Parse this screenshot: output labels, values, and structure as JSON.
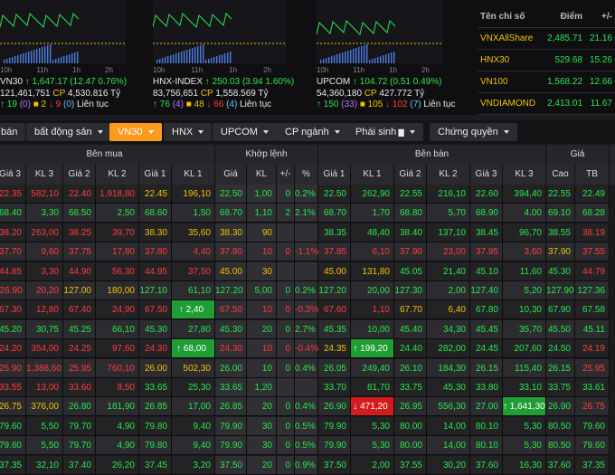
{
  "indices": [
    {
      "time": [
        "10h",
        "11h",
        "1h",
        "2h"
      ],
      "name": "VN30",
      "arrow": "up",
      "value": "1,647.17",
      "change": "(12.47 0.76%)",
      "volume": "121,461,751",
      "cp_label": "CP",
      "value_traded": "4,530.816",
      "unit": "Tỷ",
      "up": "19",
      "ceil": "(0)",
      "ref": "2",
      "down": "9",
      "floor": "(0)",
      "session": "Liên tục"
    },
    {
      "time": [
        "10h",
        "11h",
        "1h",
        "2h"
      ],
      "name": "HNX-INDEX",
      "arrow": "up",
      "value": "250.03",
      "change": "(3.94 1.60%)",
      "volume": "83,756,651",
      "cp_label": "CP",
      "value_traded": "1,558.569",
      "unit": "Tỷ",
      "up": "76",
      "ceil": "(4)",
      "ref": "48",
      "down": "66",
      "floor": "(4)",
      "session": "Liên tục"
    },
    {
      "time": [
        "10h",
        "11h",
        "1h",
        "2h"
      ],
      "name": "UPCOM",
      "arrow": "up",
      "value": "104.72",
      "change": "(0.51 0.49%)",
      "volume": "54,360,180",
      "cp_label": "CP",
      "value_traded": "427.772",
      "unit": "Tỷ",
      "up": "150",
      "ceil": "(33)",
      "ref": "105",
      "down": "102",
      "floor": "(7)",
      "session": "Liên tục"
    }
  ],
  "summary": {
    "headers": [
      "Tên chỉ số",
      "Điểm",
      "+/-"
    ],
    "rows": [
      {
        "name": "VNXAllShare",
        "point": "2,485.71",
        "chg": "21.16"
      },
      {
        "name": "HNX30",
        "point": "529.68",
        "chg": "15.26"
      },
      {
        "name": "VN100",
        "point": "1,568.22",
        "chg": "12.66"
      },
      {
        "name": "VNDIAMOND",
        "point": "2,413.01",
        "chg": "11.67"
      }
    ]
  },
  "tabs": [
    {
      "label": "bán",
      "caret": false
    },
    {
      "label": "bất động sản",
      "caret": true
    },
    {
      "label": "VN30",
      "caret": true,
      "active": true
    },
    {
      "label": "HNX",
      "caret": true
    },
    {
      "label": "UPCOM",
      "caret": true
    },
    {
      "label": "CP ngành",
      "caret": true
    },
    {
      "label": "Phái sinh",
      "caret": true
    },
    {
      "label": "Chứng quyền",
      "caret": true
    }
  ],
  "groups": {
    "buy": "Bên mua",
    "match": "Khớp lệnh",
    "sell": "Bên bán",
    "price": "Giá"
  },
  "columns": [
    "Giá 3",
    "KL 3",
    "Giá 2",
    "KL 2",
    "Giá 1",
    "KL 1",
    "Giá",
    "KL",
    "+/-",
    "%",
    "Giá 1",
    "KL 1",
    "Giá 2",
    "KL 2",
    "Giá 3",
    "KL 3",
    "Cao",
    "TB"
  ],
  "rows": [
    [
      "22.35",
      "582,10",
      "22.40",
      "1,918,80",
      "22.45",
      "196,10",
      "22.50",
      "1,00",
      "0",
      "0.2%",
      "22.50",
      "262,90",
      "22.55",
      "216,10",
      "22.60",
      "394,40",
      "22.55",
      "22.49"
    ],
    [
      "68.40",
      "3,30",
      "68.50",
      "2,50",
      "68.60",
      "1,50",
      "68.70",
      "1,10",
      "2",
      "2.1%",
      "68.70",
      "1,70",
      "68.80",
      "5,70",
      "68.90",
      "4,00",
      "69.10",
      "68.28"
    ],
    [
      "38.20",
      "263,00",
      "38.25",
      "39,70",
      "38.30",
      "35,60",
      "38.30",
      "90",
      "",
      "",
      "38.35",
      "48,40",
      "38.40",
      "137,10",
      "38.45",
      "96,70",
      "38.55",
      "38.19"
    ],
    [
      "37.70",
      "9,60",
      "37.75",
      "17,80",
      "37.80",
      "4,40",
      "37.80",
      "10",
      "0",
      "-1.1%",
      "37.85",
      "6,10",
      "37.90",
      "23,00",
      "37.95",
      "3,60",
      "37.90",
      "37.55"
    ],
    [
      "44.85",
      "3,30",
      "44.90",
      "56,30",
      "44.95",
      "37,50",
      "45.00",
      "30",
      "",
      "",
      "45.00",
      "131,80",
      "45.05",
      "21,40",
      "45.10",
      "11,60",
      "45.30",
      "44.79"
    ],
    [
      "126.90",
      "20,20",
      "127.00",
      "180,00",
      "127.10",
      "61,10",
      "127.20",
      "5,00",
      "0",
      "0.2%",
      "127.20",
      "20,00",
      "127.30",
      "2,00",
      "127.40",
      "5,20",
      "127.90",
      "127.36"
    ],
    [
      "67.30",
      "12,80",
      "67.40",
      "24,90",
      "67.50",
      "2,40",
      "67.50",
      "10",
      "0",
      "-0.3%",
      "67.60",
      "1,10",
      "67.70",
      "6,40",
      "67.80",
      "10,30",
      "67.90",
      "67.58"
    ],
    [
      "45.20",
      "30,75",
      "45.25",
      "66,10",
      "45.30",
      "27,80",
      "45.30",
      "20",
      "0",
      "2.7%",
      "45.35",
      "10,00",
      "45.40",
      "34,30",
      "45.45",
      "35,70",
      "45.50",
      "45.11"
    ],
    [
      "24.20",
      "354,00",
      "24.25",
      "97,60",
      "24.30",
      "68,00",
      "24.30",
      "10",
      "0",
      "-0.4%",
      "24.35",
      "199,20",
      "24.40",
      "282,00",
      "24.45",
      "207,60",
      "24.50",
      "24.19"
    ],
    [
      "25.90",
      "1,388,60",
      "25.95",
      "760,10",
      "26.00",
      "502,30",
      "26.00",
      "10",
      "0",
      "0.4%",
      "26.05",
      "249,40",
      "26.10",
      "184,30",
      "26.15",
      "115,40",
      "26.15",
      "25.95"
    ],
    [
      "33.55",
      "13,00",
      "33.60",
      "8,50",
      "33.65",
      "25,30",
      "33.65",
      "1,20",
      "",
      "",
      "33.70",
      "81,70",
      "33.75",
      "45,30",
      "33.80",
      "33,10",
      "33.75",
      "33.61"
    ],
    [
      "26.75",
      "376,00",
      "26.80",
      "181,90",
      "26.85",
      "17,00",
      "26.85",
      "20",
      "0",
      "0.4%",
      "26.90",
      "471,20",
      "26.95",
      "556,30",
      "27.00",
      "1,641,30",
      "26.90",
      "26.75"
    ],
    [
      "79.60",
      "5,50",
      "79.70",
      "4,90",
      "79.80",
      "9,40",
      "79.90",
      "30",
      "0",
      "0.5%",
      "79.90",
      "5,30",
      "80.00",
      "14,00",
      "80.10",
      "5,30",
      "80.50",
      "79.60"
    ],
    [
      "79.60",
      "5,50",
      "79.70",
      "4,90",
      "79.80",
      "9,40",
      "79.90",
      "30",
      "0",
      "0.5%",
      "79.90",
      "5,30",
      "80.00",
      "14,00",
      "80.10",
      "5,30",
      "80.50",
      "79.60"
    ],
    [
      "37.35",
      "32,10",
      "37.40",
      "26,20",
      "37.45",
      "3,20",
      "37.50",
      "20",
      "0",
      "0.9%",
      "37.50",
      "2,00",
      "37.55",
      "30,20",
      "37.60",
      "16,30",
      "37.60",
      "37.35"
    ]
  ],
  "row_colors": [
    [
      "down",
      "down",
      "down",
      "down",
      "ref",
      "ref",
      "up",
      "up",
      "up",
      "up",
      "up",
      "up",
      "up",
      "up",
      "up",
      "up",
      "up",
      "up"
    ],
    [
      "up",
      "up",
      "up",
      "up",
      "up",
      "up",
      "up",
      "up",
      "up",
      "up",
      "up",
      "up",
      "up",
      "up",
      "up",
      "up",
      "up",
      "up"
    ],
    [
      "down",
      "down",
      "down",
      "down",
      "ref",
      "ref",
      "ref",
      "ref",
      "ref",
      "down",
      "up",
      "up",
      "up",
      "up",
      "up",
      "up",
      "up",
      "down"
    ],
    [
      "down",
      "down",
      "down",
      "down",
      "down",
      "down",
      "down",
      "down",
      "down",
      "down",
      "down",
      "down",
      "down",
      "down",
      "down",
      "down",
      "ref",
      "down"
    ],
    [
      "down",
      "down",
      "down",
      "down",
      "down",
      "down",
      "ref",
      "ref",
      "ref",
      "ref",
      "ref",
      "ref",
      "up",
      "up",
      "up",
      "up",
      "up",
      "down"
    ],
    [
      "down",
      "down",
      "ref",
      "ref",
      "up",
      "up",
      "up",
      "up",
      "up",
      "up",
      "up",
      "up",
      "up",
      "up",
      "up",
      "up",
      "up",
      "up"
    ],
    [
      "down",
      "down",
      "down",
      "down",
      "down",
      "flash-g",
      "down",
      "down",
      "down",
      "down",
      "down",
      "down",
      "ref",
      "ref",
      "up",
      "up",
      "up",
      "up"
    ],
    [
      "up",
      "up",
      "up",
      "up",
      "up",
      "up",
      "up",
      "up",
      "up",
      "up",
      "up",
      "up",
      "up",
      "up",
      "up",
      "up",
      "up",
      "up"
    ],
    [
      "down",
      "down",
      "down",
      "down",
      "down",
      "flash-g",
      "down",
      "down",
      "down",
      "down",
      "ref",
      "flash-g",
      "up",
      "up",
      "up",
      "up",
      "up",
      "down"
    ],
    [
      "down",
      "down",
      "down",
      "down",
      "ref",
      "ref",
      "up",
      "up",
      "up",
      "up",
      "up",
      "up",
      "up",
      "up",
      "up",
      "up",
      "up",
      "down"
    ],
    [
      "down",
      "down",
      "down",
      "down",
      "up",
      "up",
      "up",
      "up",
      "ref",
      "ref",
      "up",
      "up",
      "up",
      "up",
      "up",
      "up",
      "up",
      "up"
    ],
    [
      "ref",
      "ref",
      "up",
      "up",
      "up",
      "up",
      "up",
      "up",
      "up",
      "up",
      "up",
      "flash-r",
      "up",
      "up",
      "up",
      "flash-g",
      "up",
      "down"
    ],
    [
      "up",
      "up",
      "up",
      "up",
      "up",
      "up",
      "up",
      "up",
      "up",
      "up",
      "up",
      "up",
      "up",
      "up",
      "up",
      "up",
      "up",
      "up"
    ],
    [
      "up",
      "up",
      "up",
      "up",
      "up",
      "up",
      "up",
      "up",
      "up",
      "up",
      "up",
      "up",
      "up",
      "up",
      "up",
      "up",
      "up",
      "up"
    ],
    [
      "up",
      "up",
      "up",
      "up",
      "up",
      "up",
      "up",
      "up",
      "up",
      "up",
      "up",
      "up",
      "up",
      "up",
      "up",
      "up",
      "up",
      "up"
    ]
  ],
  "colors": {
    "up": "#29e64b",
    "down": "#ff3b3b",
    "ref": "#f2c200",
    "accent": "#ff9a1f"
  }
}
